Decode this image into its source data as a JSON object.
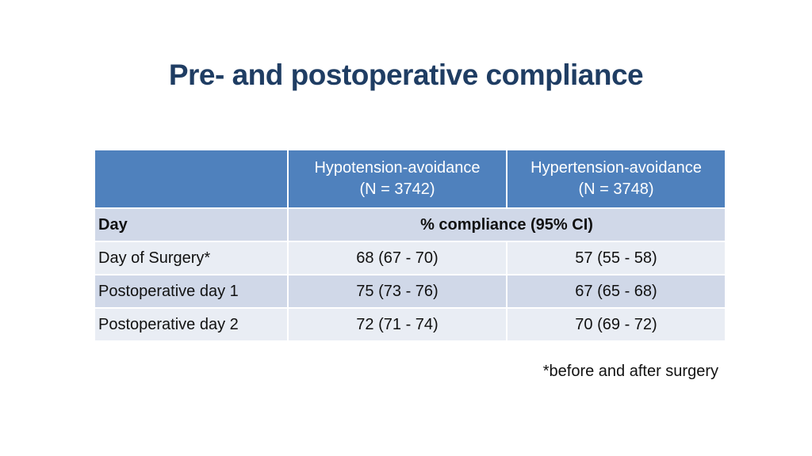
{
  "title": "Pre- and postoperative compliance",
  "table": {
    "columns": [
      {
        "line1": "Hypotension-avoidance",
        "line2": "(N = 3742)"
      },
      {
        "line1": "Hypertension-avoidance",
        "line2": "(N = 3748)"
      }
    ],
    "row_header": "Day",
    "subheader": "% compliance (95% CI)",
    "rows": [
      {
        "day": "Day of Surgery*",
        "hypo": "68 (67 - 70)",
        "hyper": "57 (55 - 58)"
      },
      {
        "day": "Postoperative day 1",
        "hypo": "75 (73 - 76)",
        "hyper": "67 (65 - 68)"
      },
      {
        "day": "Postoperative day 2",
        "hypo": "72 (71 - 74)",
        "hyper": "70 (69 - 72)"
      }
    ]
  },
  "footnote": "*before and after surgery",
  "colors": {
    "title": "#1f3d63",
    "header": "#4f81bd",
    "band_dark": "#d0d8e8",
    "band_light": "#e9edf4"
  }
}
